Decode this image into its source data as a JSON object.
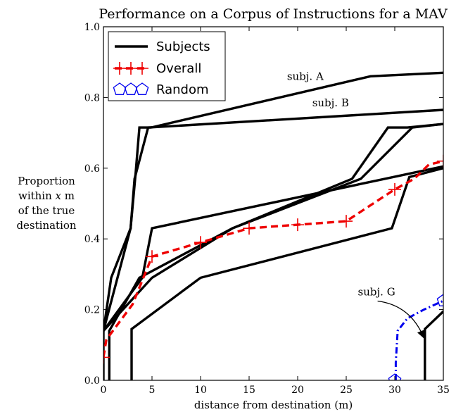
{
  "chart_data": {
    "type": "line",
    "title": "Performance on a Corpus of Instructions for a MAV",
    "xlabel": "distance from destination (m)",
    "ylabel": [
      "Proportion",
      "within x m",
      "of the true",
      "destination"
    ],
    "xlim": [
      0,
      35
    ],
    "ylim": [
      0,
      1.0
    ],
    "xticks": [
      0,
      5,
      10,
      15,
      20,
      25,
      30,
      35
    ],
    "yticks": [
      0.0,
      0.2,
      0.4,
      0.6,
      0.8,
      1.0
    ],
    "xtick_labels": [
      "0",
      "5",
      "10",
      "15",
      "20",
      "25",
      "30",
      "35"
    ],
    "ytick_labels": [
      "0.0",
      "0.2",
      "0.4",
      "0.6",
      "0.8",
      "1.0"
    ],
    "grid": false,
    "legend_position": "top-left",
    "series": [
      {
        "name": "Subjects",
        "style": "solid",
        "color": "#000000",
        "lines": [
          [
            [
              0,
              0.14
            ],
            [
              0.8,
              0.29
            ],
            [
              2.8,
              0.43
            ],
            [
              3.3,
              0.58
            ],
            [
              3.7,
              0.715
            ],
            [
              4.9,
              0.715
            ],
            [
              27.5,
              0.86
            ],
            [
              35,
              0.87
            ]
          ],
          [
            [
              0,
              0.0
            ],
            [
              0,
              0.14
            ],
            [
              2.8,
              0.43
            ],
            [
              3.2,
              0.57
            ],
            [
              4.6,
              0.715
            ],
            [
              35,
              0.765
            ]
          ],
          [
            [
              0,
              0.14
            ],
            [
              4,
              0.29
            ],
            [
              5,
              0.43
            ],
            [
              35,
              0.605
            ]
          ],
          [
            [
              0,
              0.14
            ],
            [
              5,
              0.29
            ],
            [
              13.3,
              0.43
            ],
            [
              25.6,
              0.57
            ],
            [
              29.3,
              0.715
            ],
            [
              31.3,
              0.715
            ],
            [
              35,
              0.725
            ]
          ],
          [
            [
              0.6,
              0.0
            ],
            [
              0.6,
              0.14
            ],
            [
              3.7,
              0.29
            ],
            [
              13.3,
              0.43
            ],
            [
              26.5,
              0.57
            ],
            [
              31.8,
              0.715
            ],
            [
              35,
              0.725
            ]
          ],
          [
            [
              2.9,
              0.0
            ],
            [
              2.9,
              0.145
            ],
            [
              10,
              0.29
            ],
            [
              29.7,
              0.43
            ],
            [
              31.5,
              0.575
            ],
            [
              35,
              0.6
            ]
          ],
          [
            [
              33.1,
              0.0
            ],
            [
              33.1,
              0.145
            ],
            [
              35,
              0.195
            ]
          ]
        ]
      },
      {
        "name": "Overall",
        "style": "dashed",
        "color": "#ee0000",
        "marker": "+",
        "x": [
          0,
          5,
          10,
          15,
          20,
          25,
          30,
          35
        ],
        "y": [
          0.065,
          0.35,
          0.39,
          0.43,
          0.44,
          0.45,
          0.54,
          0.62
        ],
        "path": [
          [
            0,
            0.065
          ],
          [
            0.3,
            0.115
          ],
          [
            3,
            0.215
          ],
          [
            5,
            0.35
          ],
          [
            10,
            0.39
          ],
          [
            15,
            0.43
          ],
          [
            20,
            0.44
          ],
          [
            25,
            0.45
          ],
          [
            30,
            0.54
          ],
          [
            32,
            0.57
          ],
          [
            33.5,
            0.61
          ],
          [
            35,
            0.62
          ]
        ]
      },
      {
        "name": "Random",
        "style": "dashdot",
        "color": "#0000ee",
        "marker": "pentagon",
        "x": [
          30,
          35
        ],
        "y": [
          0.0,
          0.225
        ],
        "path": [
          [
            30.1,
            0.0
          ],
          [
            30.1,
            0.05
          ],
          [
            30.3,
            0.14
          ],
          [
            31.3,
            0.175
          ],
          [
            33,
            0.2
          ],
          [
            35,
            0.225
          ]
        ]
      }
    ],
    "annotations": [
      {
        "text": "subj. A",
        "x": 18.9,
        "y": 0.85
      },
      {
        "text": "subj. B",
        "x": 21.5,
        "y": 0.775
      },
      {
        "text": "subj. G",
        "x": 26.2,
        "y": 0.24,
        "arrow_to": [
          33,
          0.12
        ]
      }
    ]
  }
}
